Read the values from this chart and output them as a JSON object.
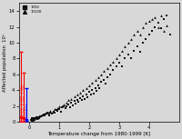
{
  "title": "",
  "xlabel": "Temperature change from 1980-1999 [K]",
  "ylabel": "Affected population  10⁸",
  "xlim": [
    -0.35,
    5.0
  ],
  "ylim": [
    0,
    15
  ],
  "yticks": [
    0,
    2,
    4,
    6,
    8,
    10,
    12,
    14
  ],
  "xticks": [
    0,
    1,
    2,
    3,
    4
  ],
  "background_color": "#d8d8d8",
  "scatter_color": "#111111",
  "sq_data_x": [
    0.05,
    0.07,
    0.09,
    0.11,
    0.13,
    0.15,
    0.17,
    0.19,
    0.21,
    0.23,
    0.25,
    0.27,
    0.3,
    0.33,
    0.36,
    0.4,
    0.44,
    0.48,
    0.52,
    0.56,
    0.6,
    0.65,
    0.7,
    0.75,
    0.8,
    0.85,
    0.9,
    0.95,
    1.0,
    1.05,
    1.1,
    1.15,
    1.2,
    1.25,
    1.3,
    1.35,
    1.4,
    1.45,
    1.5,
    1.55,
    1.6,
    1.65,
    1.7,
    1.75,
    1.8,
    1.85,
    1.9,
    1.95,
    2.0,
    2.05,
    2.1,
    2.15,
    2.2,
    2.25,
    2.3,
    2.35,
    2.4,
    2.5,
    2.55,
    2.6,
    2.7,
    2.8,
    2.9,
    3.0,
    3.1,
    3.2,
    3.3,
    3.4,
    3.5,
    3.6,
    3.7,
    3.8,
    3.9,
    4.0,
    4.1,
    4.2,
    4.3,
    4.4,
    4.5,
    4.6,
    4.7
  ],
  "sq_data_y": [
    0.2,
    0.4,
    0.15,
    0.35,
    0.5,
    0.3,
    0.25,
    0.45,
    0.4,
    0.6,
    0.5,
    0.3,
    0.55,
    0.45,
    0.7,
    0.65,
    0.8,
    0.9,
    0.75,
    1.0,
    1.1,
    0.85,
    1.2,
    1.0,
    1.3,
    1.1,
    1.5,
    1.4,
    1.6,
    1.3,
    1.8,
    2.0,
    1.7,
    1.9,
    2.2,
    1.8,
    2.4,
    2.1,
    2.6,
    2.3,
    2.8,
    2.5,
    3.0,
    2.7,
    3.2,
    2.9,
    3.5,
    3.1,
    3.8,
    3.4,
    4.0,
    3.6,
    4.3,
    3.9,
    4.6,
    4.2,
    5.0,
    5.3,
    4.8,
    5.6,
    6.0,
    6.5,
    7.0,
    7.5,
    7.0,
    8.0,
    8.5,
    8.0,
    9.0,
    9.5,
    8.8,
    10.0,
    10.5,
    11.0,
    11.5,
    12.0,
    12.5,
    11.8,
    13.0,
    13.5,
    11.0
  ],
  "tri_data_x": [
    0.06,
    0.1,
    0.14,
    0.18,
    0.22,
    0.26,
    0.32,
    0.38,
    0.44,
    0.5,
    0.56,
    0.62,
    0.7,
    0.78,
    0.85,
    0.93,
    1.0,
    1.08,
    1.15,
    1.23,
    1.3,
    1.4,
    1.5,
    1.6,
    1.7,
    1.8,
    1.9,
    2.0,
    2.1,
    2.2,
    2.3,
    2.4,
    2.5,
    2.6,
    2.7,
    2.8,
    2.9,
    3.0,
    3.1,
    3.2,
    3.3,
    3.4,
    3.5,
    3.6,
    3.7,
    3.8,
    3.9,
    4.0,
    4.1,
    4.2,
    4.3,
    4.4,
    4.5,
    4.6
  ],
  "tri_data_y": [
    0.35,
    0.25,
    0.5,
    0.4,
    0.6,
    0.45,
    0.65,
    0.8,
    0.9,
    1.0,
    1.1,
    1.2,
    1.4,
    1.3,
    1.6,
    1.7,
    1.9,
    2.0,
    2.2,
    2.4,
    2.7,
    2.9,
    3.2,
    3.5,
    3.7,
    4.0,
    4.3,
    4.6,
    4.9,
    5.3,
    5.6,
    6.0,
    6.4,
    6.8,
    7.2,
    7.6,
    8.0,
    8.5,
    9.0,
    9.5,
    10.0,
    10.5,
    11.0,
    11.5,
    11.0,
    12.0,
    12.5,
    12.8,
    13.0,
    13.2,
    12.0,
    13.5,
    11.5,
    12.2
  ],
  "x_red1": -0.28,
  "x_red2": -0.19,
  "x_blue": -0.09,
  "red1_ymid": 4.5,
  "red1_ylo": 0.05,
  "red1_yhi": 8.8,
  "red2_ymid": 3.2,
  "red2_ylo": 0.05,
  "red2_yhi": 6.2,
  "blue_ymid": 2.0,
  "blue_ylo": 0.1,
  "blue_yhi": 4.2,
  "red1_dot_y": 0.6,
  "red2_dot_y": 0.4,
  "blue_dot_y": 0.25
}
